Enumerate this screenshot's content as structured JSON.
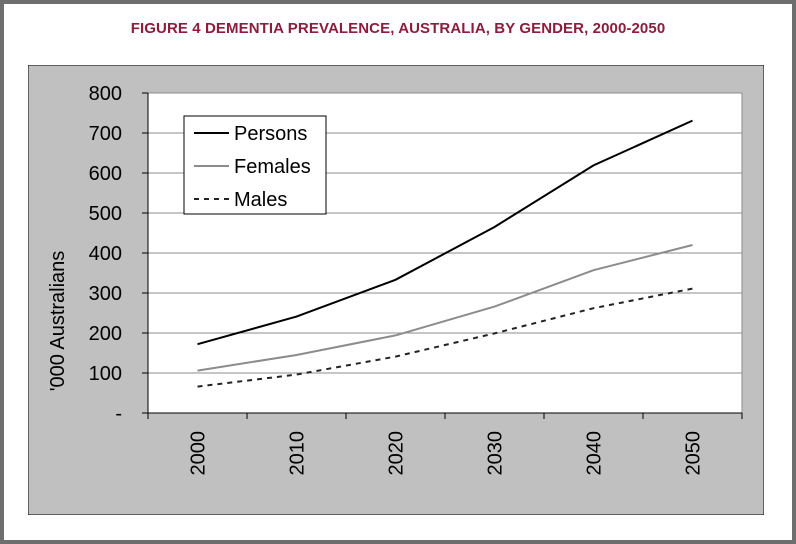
{
  "figure_title": "FIGURE 4  DEMENTIA PREVALENCE, AUSTRALIA, BY GENDER, 2000-2050",
  "colors": {
    "title": "#8b1d3f",
    "panel": "#c0c0c0",
    "plot_area": "#ffffff",
    "persons": "#000000",
    "females": "#8c8c8c",
    "males": "#222222"
  },
  "chart_data": {
    "type": "line",
    "title": "",
    "xlabel": "",
    "ylabel": "'000 Australians",
    "categories": [
      "2000",
      "2010",
      "2020",
      "2030",
      "2040",
      "2050"
    ],
    "y_tick_labels": [
      "-",
      "100",
      "200",
      "300",
      "400",
      "500",
      "600",
      "700",
      "800"
    ],
    "ylim": [
      0,
      800
    ],
    "grid": "horizontal",
    "legend_position": "top-left",
    "series": [
      {
        "name": "Persons",
        "values": [
          172,
          241,
          333,
          465,
          619,
          731
        ],
        "style": "solid"
      },
      {
        "name": "Females",
        "values": [
          106,
          145,
          194,
          266,
          357,
          420
        ],
        "style": "solid"
      },
      {
        "name": "Males",
        "values": [
          66,
          96,
          141,
          199,
          262,
          311
        ],
        "style": "dashed"
      }
    ]
  }
}
